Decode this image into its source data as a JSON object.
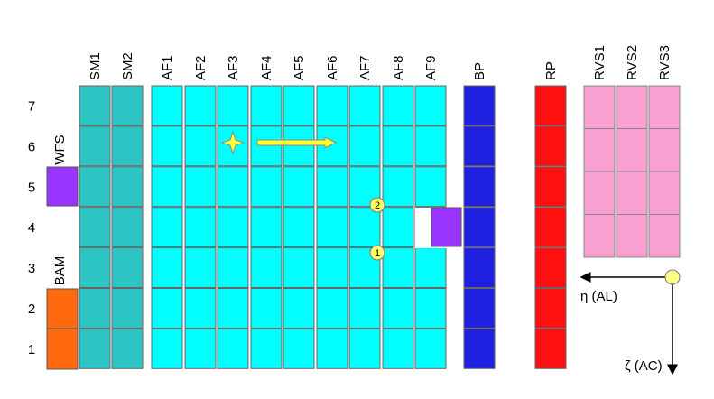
{
  "columns": [
    "SM1",
    "SM2",
    "AF1",
    "AF2",
    "AF3",
    "AF4",
    "AF5",
    "AF6",
    "AF7",
    "AF8",
    "AF9",
    "BP",
    "RP",
    "RVS1",
    "RVS2",
    "RVS3"
  ],
  "rows": [
    "7",
    "6",
    "5",
    "4",
    "3",
    "2",
    "1"
  ],
  "wfs_label": "WFS",
  "bam_label": "BAM",
  "markers": [
    "2",
    "1"
  ],
  "axes": {
    "horizontal": "η (AL)",
    "vertical": "ζ (AC)"
  }
}
